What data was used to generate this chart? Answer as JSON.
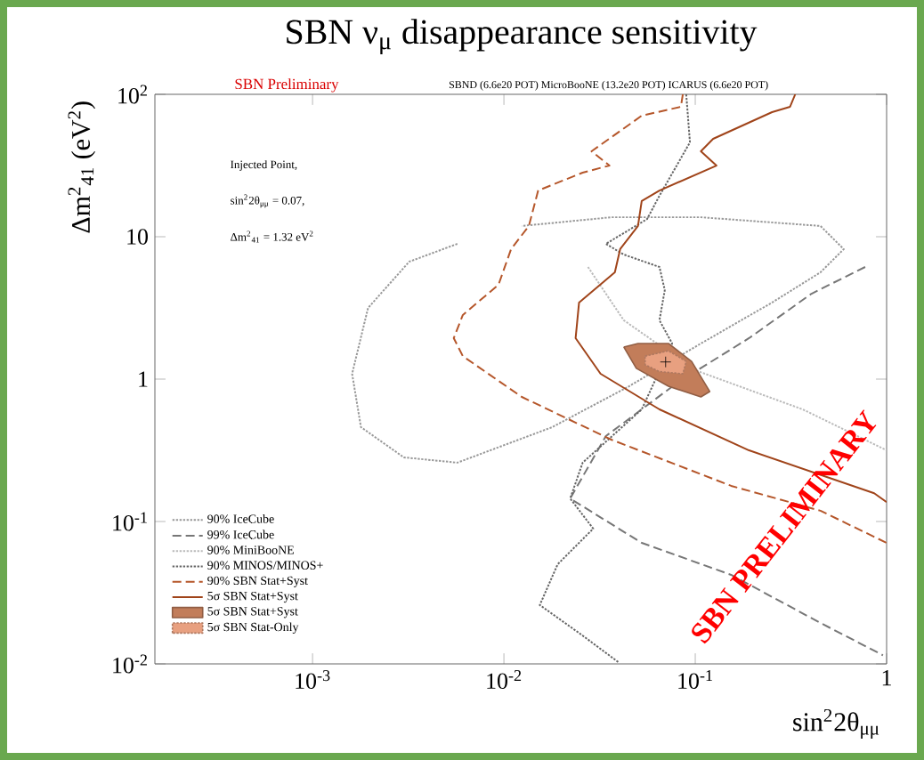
{
  "chart_data": {
    "type": "line",
    "title": "SBN ν$_{μ}$ disappearance sensitivity",
    "xlabel": "sin$^{2}$2θ$_{μμ}$",
    "ylabel": "Δm$^{2}$$_{41}$ (eV$^{2}$)",
    "log": "xy",
    "xlim": [
      0.00015,
      1
    ],
    "ylim": [
      0.01,
      100
    ],
    "xticks": [
      {
        "value": 0.001,
        "label": "10$^{-3}$"
      },
      {
        "value": 0.01,
        "label": "10$^{-2}$"
      },
      {
        "value": 0.1,
        "label": "10$^{-1}$"
      },
      1
    ],
    "yticks": [
      {
        "value": 0.01,
        "label": "10$^{-2}$"
      },
      {
        "value": 0.1,
        "label": "10$^{-1}$"
      },
      1,
      10,
      {
        "value": 100,
        "label": "10$^{2}$"
      }
    ],
    "grid": false,
    "legend": "bottom left",
    "annotations": [
      "SBN Preliminary",
      "SBND (6.6e20 POT) MicroBooNE (13.2e20 POT) ICARUS (6.6e20 POT)",
      "Injected Point,",
      "sin$^{2}$2θ$_{μμ}$ = 0.07,",
      "Δm$^{2}$$_{41}$ = 1.32 eV$^{2}$",
      "SBN PRELIMINARY"
    ],
    "series": [
      {
        "name": "90% IceCube",
        "color": "#999999",
        "line_style": "dotted",
        "x": [
          0.00571,
          0.0032,
          0.00195,
          0.00161,
          0.00179,
          0.003,
          0.00571,
          0.0179,
          0.0451,
          0.107,
          0.252,
          0.451,
          0.597,
          0.451,
          0.107,
          0.0364,
          0.0124
        ],
        "values": [
          8.91,
          6.68,
          3.16,
          1.09,
          0.46,
          0.282,
          0.259,
          0.46,
          0.891,
          1.78,
          3.45,
          5.62,
          8.18,
          11.9,
          13.7,
          13.7,
          11.9
        ]
      },
      {
        "name": "99% IceCube",
        "color": "#777777",
        "line_style": "dashed",
        "x": [
          0.773,
          0.405,
          0.191,
          0.0807,
          0.0341,
          0.0222,
          0.0525,
          0.154,
          0.451,
          0.957
        ],
        "values": [
          6.13,
          3.98,
          1.94,
          0.944,
          0.398,
          0.145,
          0.0708,
          0.0422,
          0.0194,
          0.0115
        ]
      },
      {
        "name": "90% MiniBooNE",
        "color": "#bbbbbb",
        "line_style": "dotted",
        "x": [
          0.0275,
          0.0423,
          0.1,
          0.364,
          1
        ],
        "values": [
          6.13,
          2.59,
          1.155,
          0.613,
          0.316
        ]
      },
      {
        "name": "90% MINOS/MINOS+",
        "color": "#666666",
        "line_style": "dotted",
        "x": [
          0.0897,
          0.0938,
          0.065,
          0.056,
          0.0341,
          0.0423,
          0.065,
          0.0693,
          0.065,
          0.0757,
          0.0525,
          0.0258,
          0.0222,
          0.0293,
          0.0191,
          0.0154,
          0.0258,
          0.0396
        ],
        "values": [
          100,
          46.0,
          19.4,
          13.3,
          8.91,
          7.5,
          6.13,
          4.22,
          2.59,
          1.78,
          0.613,
          0.259,
          0.145,
          0.0891,
          0.0501,
          0.0259,
          0.0158,
          0.0103
        ]
      },
      {
        "name": "90% SBN Stat+Syst",
        "color": "#b5562a",
        "line_style": "dashed",
        "x": [
          0.0861,
          0.0841,
          0.0525,
          0.0287,
          0.0356,
          0.0258,
          0.0151,
          0.0135,
          0.0109,
          0.00937,
          0.0061,
          0.00547,
          0.0061,
          0.0124,
          0.0364,
          0.154,
          0.451,
          1
        ],
        "values": [
          100,
          81.8,
          70.8,
          39.8,
          31.6,
          28.2,
          21.1,
          11.9,
          8.18,
          4.6,
          2.82,
          1.94,
          1.45,
          0.75,
          0.376,
          0.178,
          0.119,
          0.0708
        ]
      },
      {
        "name": "5σ SBN Stat+Syst",
        "color": "#a0441a",
        "line_style": "solid",
        "x": [
          0.333,
          0.313,
          0.252,
          0.124,
          0.107,
          0.129,
          0.065,
          0.0525,
          0.0502,
          0.0405,
          0.038,
          0.0247,
          0.0237,
          0.032,
          0.065,
          0.191,
          0.861,
          1
        ],
        "values": [
          100,
          81.8,
          75.0,
          48.7,
          39.8,
          31.6,
          21.1,
          17.8,
          11.9,
          8.18,
          5.62,
          3.45,
          1.94,
          1.09,
          0.613,
          0.316,
          0.158,
          0.137
        ]
      },
      {
        "name": "5σ SBN Stat+Syst",
        "type": "area",
        "color": "#c27d5a",
        "line_style": "solid",
        "x": [
          0.0423,
          0.0502,
          0.0724,
          0.0957,
          0.119,
          0.107,
          0.0724,
          0.0492
        ],
        "values": [
          1.68,
          1.78,
          1.78,
          1.33,
          0.818,
          0.75,
          0.891,
          1.19
        ]
      },
      {
        "name": "5σ SBN Stat-Only",
        "type": "area",
        "color": "#e8a080",
        "line_style": "dotted",
        "x": [
          0.0547,
          0.0724,
          0.0897,
          0.0861,
          0.065,
          0.0547
        ],
        "values": [
          1.45,
          1.58,
          1.33,
          1.09,
          1.13,
          1.26
        ]
      },
      {
        "type": "scatter",
        "color": "#000000",
        "marker": "cross",
        "x": [
          0.07
        ],
        "values": [
          1.32
        ]
      }
    ]
  }
}
